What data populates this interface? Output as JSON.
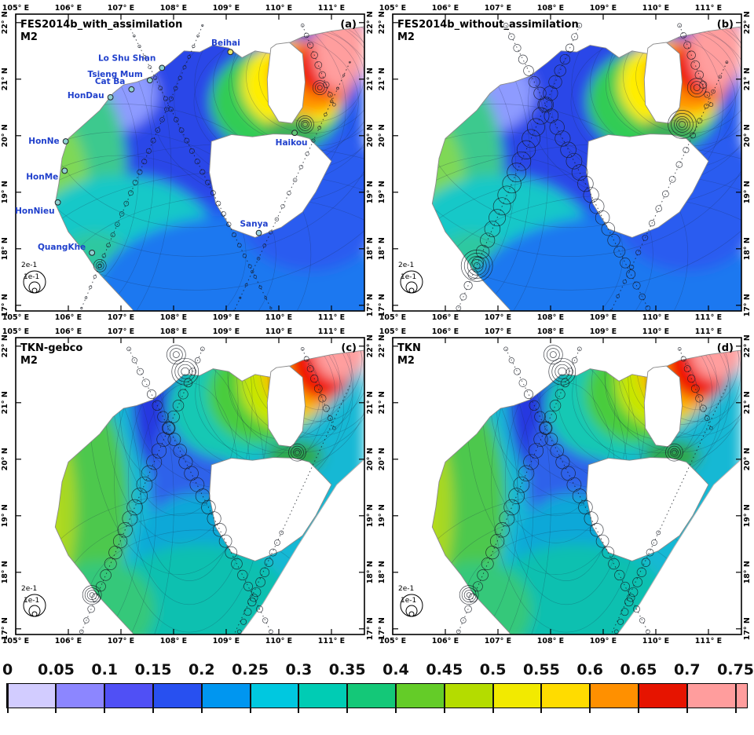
{
  "axes": {
    "lon_ticks": [
      "105° E",
      "106° E",
      "107° E",
      "108° E",
      "109° E",
      "110° E",
      "111° E"
    ],
    "lat_ticks": [
      "22° N",
      "21° N",
      "20° N",
      "19° N",
      "18° N",
      "17° N"
    ]
  },
  "colorbar": {
    "labels": [
      "0",
      "0.05",
      "0.1",
      "0.15",
      "0.2",
      "0.25",
      "0.3",
      "0.35",
      "0.4",
      "0.45",
      "0.5",
      "0.55",
      "0.6",
      "0.65",
      "0.7",
      "0.75"
    ],
    "colors": [
      "#d2ccff",
      "#8c86ff",
      "#5050f5",
      "#2850f0",
      "#0096f0",
      "#00c8e0",
      "#00ccb4",
      "#14c878",
      "#64cc28",
      "#b4dc00",
      "#f2ea00",
      "#ffdc00",
      "#ff9000",
      "#e61400",
      "#ff9d9d"
    ]
  },
  "panels": [
    {
      "letter": "(a)",
      "title": "FES2014b_with_assimilation",
      "subtitle": "M2",
      "legend": [
        "2e-1",
        "1e-1"
      ],
      "stations": [
        {
          "name": "Beihai",
          "lon": 109.08,
          "lat": 21.48,
          "color": "#e6e66e"
        },
        {
          "name": "Lo Shu Shan",
          "lon": 107.78,
          "lat": 21.2,
          "color": "#8fd0d0"
        },
        {
          "name": "Tsieng Mum",
          "lon": 107.55,
          "lat": 20.98,
          "color": "#8fd0d0"
        },
        {
          "name": "Cat Ba",
          "lon": 107.2,
          "lat": 20.82,
          "color": "#8fd0d0"
        },
        {
          "name": "HonDau",
          "lon": 106.8,
          "lat": 20.68,
          "color": "#8fd0d0"
        },
        {
          "name": "HonNe",
          "lon": 105.95,
          "lat": 19.9,
          "color": "#8fd0d0"
        },
        {
          "name": "HonMe",
          "lon": 105.93,
          "lat": 19.38,
          "color": "#8fd0d0"
        },
        {
          "name": "HonNieu",
          "lon": 105.8,
          "lat": 18.82,
          "color": "#8fd0d0"
        },
        {
          "name": "QuangKhe",
          "lon": 106.45,
          "lat": 17.93,
          "color": "#8fd0d0"
        },
        {
          "name": "Haikou",
          "lon": 110.3,
          "lat": 20.05,
          "color": "#64c878"
        },
        {
          "name": "Sanya",
          "lon": 109.62,
          "lat": 18.28,
          "color": "#9fd4e0"
        }
      ]
    },
    {
      "letter": "(b)",
      "title": "FES2014b_without_assimilation",
      "subtitle": "M2",
      "legend": [
        "2e-1",
        "1e-1"
      ]
    },
    {
      "letter": "(c)",
      "title": "TKN-gebco",
      "subtitle": "M2",
      "legend": [
        "2e-1",
        "1e-1"
      ]
    },
    {
      "letter": "(d)",
      "title": "TKN",
      "subtitle": "M2",
      "legend": [
        "2e-1",
        "1e-1"
      ]
    }
  ]
}
